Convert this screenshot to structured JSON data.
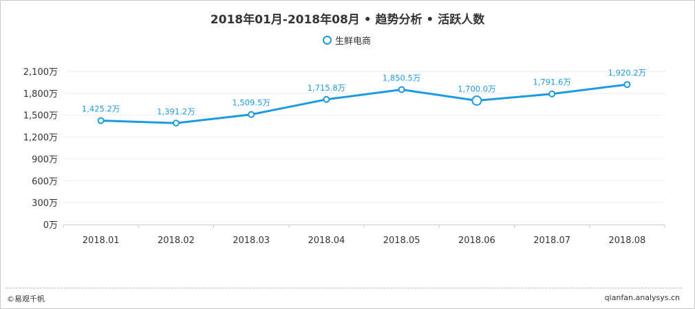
{
  "title": "2018年01月-2018年08月 • 趋势分析 • 活跃人数",
  "footer": {
    "left": "©易观千帆",
    "right": "qianfan.analysys.cn"
  },
  "colors": {
    "series": "#1a9ae0",
    "label": "#1a9ae0",
    "grid": "#eeeeee",
    "axis": "#cccccc"
  },
  "chart_data": {
    "type": "line",
    "title": "2018年01月-2018年08月 • 趋势分析 • 活跃人数",
    "categories": [
      "2018.01",
      "2018.02",
      "2018.03",
      "2018.04",
      "2018.05",
      "2018.06",
      "2018.07",
      "2018.08"
    ],
    "yticks": [
      "0万",
      "300万",
      "600万",
      "900万",
      "1,200万",
      "1,500万",
      "1,800万",
      "2,100万"
    ],
    "ylim": [
      0,
      2100
    ],
    "grid": true,
    "legend_position": "top-center",
    "series": [
      {
        "name": "生鲜电商",
        "values": [
          1425.2,
          1391.2,
          1509.5,
          1715.8,
          1850.5,
          1700.0,
          1791.6,
          1920.2
        ],
        "labels": [
          "1,425.2万",
          "1,391.2万",
          "1,509.5万",
          "1,715.8万",
          "1,850.5万",
          "1,700.0万",
          "1,791.6万",
          "1,920.2万"
        ],
        "highlighted_index": 5
      }
    ]
  }
}
